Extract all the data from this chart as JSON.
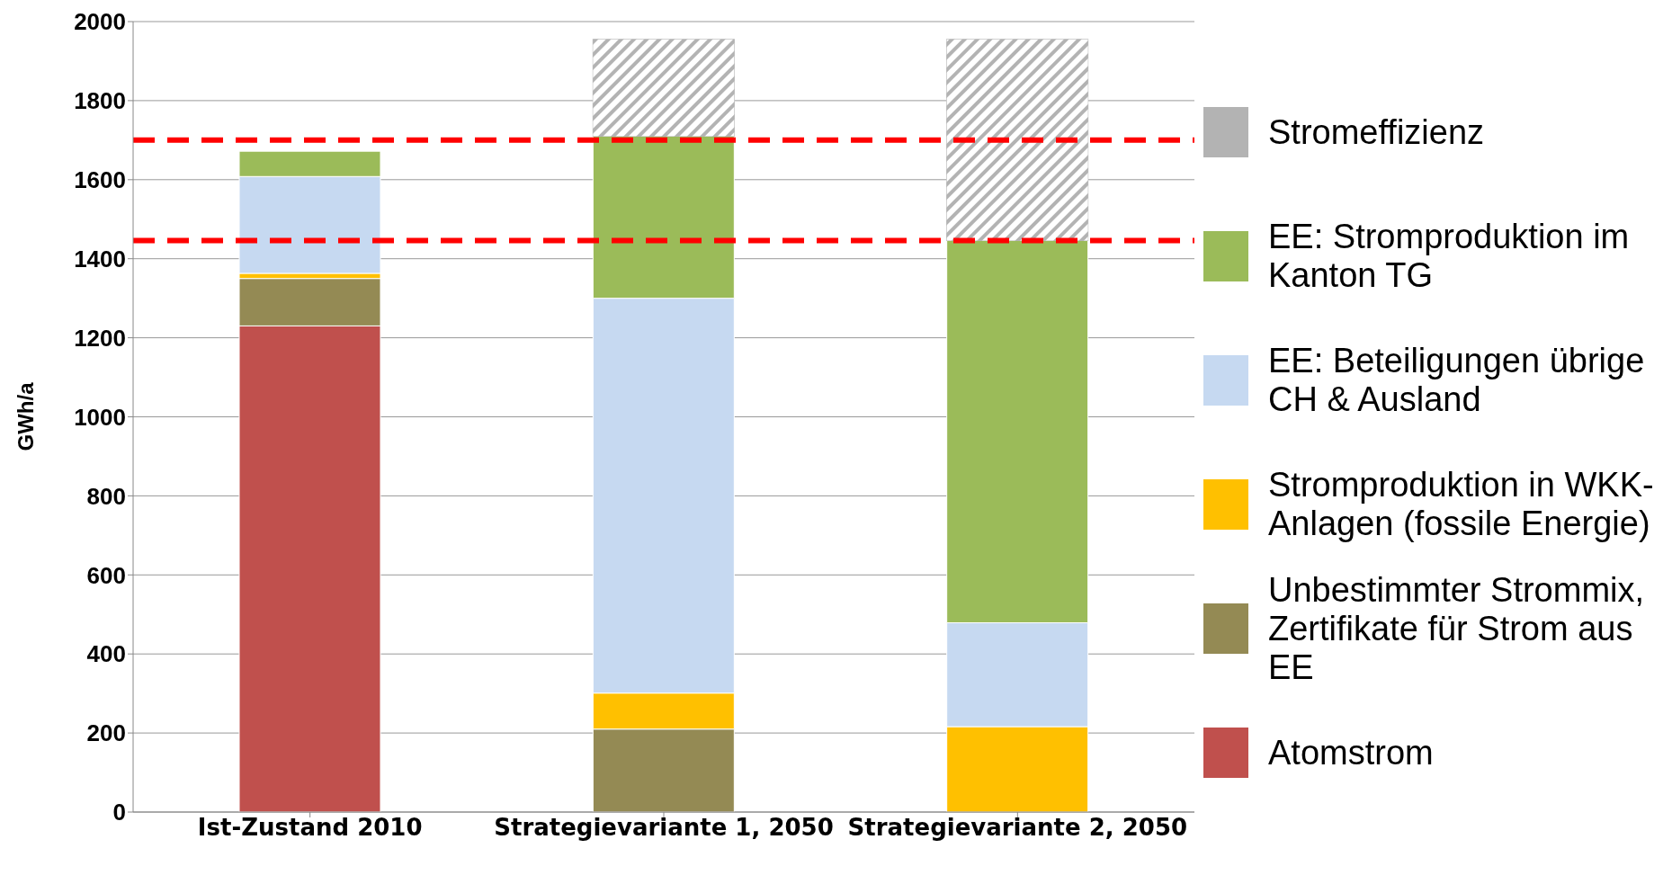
{
  "chart_data": {
    "type": "bar",
    "stacked": true,
    "ylabel": "GWh/a",
    "categories": [
      "Ist-Zustand  2010",
      "Strategievariante 1, 2050",
      "Strategievariante 2, 2050"
    ],
    "series": [
      {
        "name": "Atomstrom",
        "color": "#c0504d",
        "values": [
          1230,
          0,
          0
        ]
      },
      {
        "name": "Unbestimmter Strommix, Zertifikate für Strom aus EE",
        "color": "#948a54",
        "values": [
          120,
          210,
          0
        ]
      },
      {
        "name": "Stromproduktion in WKK-Anlagen (fossile Energie)",
        "color": "#ffc000",
        "values": [
          13,
          91,
          216
        ]
      },
      {
        "name": "EE: Beteiligungen übrige CH & Ausland",
        "color": "#c6d9f1",
        "values": [
          245,
          999,
          263
        ]
      },
      {
        "name": "EE: Stromproduktion im Kanton TG",
        "color": "#9bbb59",
        "values": [
          64,
          410,
          967
        ]
      },
      {
        "name": "Stromeffizienz",
        "color": "#b3b3b3",
        "values": [
          0,
          245,
          509
        ]
      }
    ],
    "ylim": [
      0,
      2000
    ],
    "yticks": [
      0,
      200,
      400,
      600,
      800,
      1000,
      1200,
      1400,
      1600,
      1800,
      2000
    ],
    "grid": "y",
    "legend": "right",
    "ref_lines": [
      {
        "axis": "y",
        "value": 1700,
        "color": "#ff0000",
        "line_style": "dashed"
      },
      {
        "axis": "y",
        "value": 1446,
        "color": "#ff0000",
        "line_style": "dashed"
      }
    ]
  }
}
